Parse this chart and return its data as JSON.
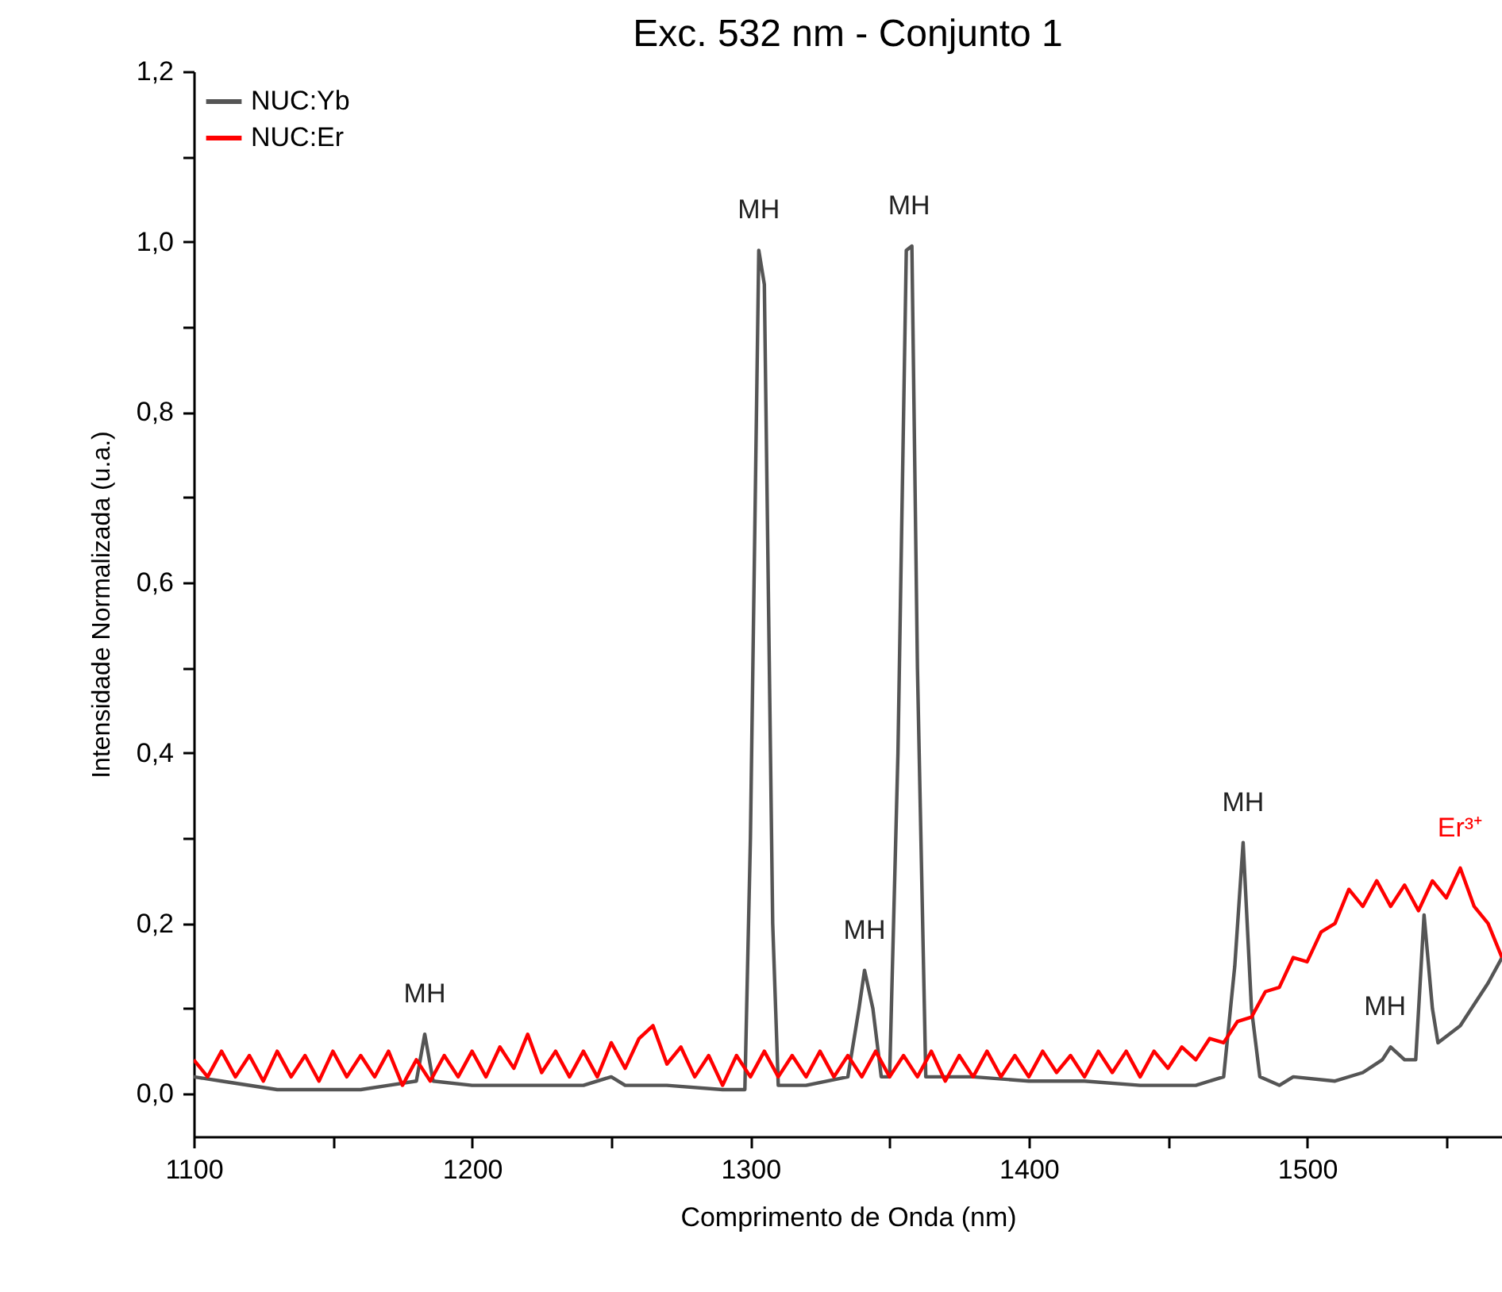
{
  "chart_data": {
    "type": "line",
    "title": "Exc. 532 nm - Conjunto 1",
    "xlabel": "Comprimento de Onda (nm)",
    "ylabel": "Intensidade Normalizada (u.a.)",
    "xlim": [
      1100,
      1570
    ],
    "ylim": [
      -0.05,
      1.2
    ],
    "xticks": [
      1100,
      {
        "value": 1150,
        "label": null
      },
      1200,
      {
        "value": 1250,
        "label": null
      },
      1300,
      {
        "value": 1350,
        "label": null
      },
      1400,
      {
        "value": 1450,
        "label": null
      },
      1500,
      {
        "value": 1550,
        "label": null
      }
    ],
    "yticks": [
      {
        "value": 0,
        "label": "0,0"
      },
      {
        "value": 0.1,
        "label": null
      },
      {
        "value": 0.2,
        "label": "0,2"
      },
      {
        "value": 0.3,
        "label": null
      },
      {
        "value": 0.4,
        "label": "0,4"
      },
      {
        "value": 0.5,
        "label": null
      },
      {
        "value": 0.6,
        "label": "0,6"
      },
      {
        "value": 0.7,
        "label": null
      },
      {
        "value": 0.8,
        "label": "0,8"
      },
      {
        "value": 0.9,
        "label": null
      },
      {
        "value": 1.0,
        "label": "1,0"
      },
      {
        "value": 1.1,
        "label": null
      },
      {
        "value": 1.2,
        "label": "1,2"
      }
    ],
    "grid": false,
    "legend": "top left",
    "line_style": "solid",
    "series": [
      {
        "name": "NUC:Yb",
        "color": "#555555",
        "x": [
          1100,
          1110,
          1130,
          1160,
          1170,
          1180,
          1183,
          1186,
          1200,
          1220,
          1240,
          1250,
          1255,
          1270,
          1290,
          1298,
          1300,
          1303,
          1305,
          1308,
          1310,
          1320,
          1335,
          1339,
          1341,
          1344,
          1347,
          1350,
          1353,
          1356,
          1358,
          1360,
          1363,
          1380,
          1400,
          1420,
          1440,
          1460,
          1470,
          1474,
          1477,
          1480,
          1483,
          1490,
          1495,
          1510,
          1520,
          1527,
          1530,
          1535,
          1539,
          1542,
          1545,
          1547,
          1555,
          1565,
          1570
        ],
        "values": [
          0.02,
          0.015,
          0.005,
          0.005,
          0.01,
          0.015,
          0.07,
          0.015,
          0.01,
          0.01,
          0.01,
          0.02,
          0.01,
          0.01,
          0.005,
          0.005,
          0.3,
          0.99,
          0.95,
          0.2,
          0.01,
          0.01,
          0.02,
          0.1,
          0.145,
          0.1,
          0.02,
          0.02,
          0.4,
          0.99,
          0.995,
          0.5,
          0.02,
          0.02,
          0.015,
          0.015,
          0.01,
          0.01,
          0.02,
          0.15,
          0.295,
          0.1,
          0.02,
          0.01,
          0.02,
          0.015,
          0.025,
          0.04,
          0.055,
          0.04,
          0.04,
          0.21,
          0.1,
          0.06,
          0.08,
          0.13,
          0.16
        ]
      },
      {
        "name": "NUC:Er",
        "color": "#ff0000",
        "x": [
          1100,
          1105,
          1110,
          1115,
          1120,
          1125,
          1130,
          1135,
          1140,
          1145,
          1150,
          1155,
          1160,
          1165,
          1170,
          1175,
          1180,
          1185,
          1190,
          1195,
          1200,
          1205,
          1210,
          1215,
          1220,
          1225,
          1230,
          1235,
          1240,
          1245,
          1250,
          1255,
          1260,
          1265,
          1270,
          1275,
          1280,
          1285,
          1290,
          1295,
          1300,
          1305,
          1310,
          1315,
          1320,
          1325,
          1330,
          1335,
          1340,
          1345,
          1350,
          1355,
          1360,
          1365,
          1370,
          1375,
          1380,
          1385,
          1390,
          1395,
          1400,
          1405,
          1410,
          1415,
          1420,
          1425,
          1430,
          1435,
          1440,
          1445,
          1450,
          1455,
          1460,
          1465,
          1470,
          1475,
          1480,
          1485,
          1490,
          1495,
          1500,
          1505,
          1510,
          1515,
          1520,
          1525,
          1530,
          1535,
          1540,
          1545,
          1550,
          1555,
          1560,
          1565,
          1570
        ],
        "values": [
          0.04,
          0.02,
          0.05,
          0.02,
          0.045,
          0.015,
          0.05,
          0.02,
          0.045,
          0.015,
          0.05,
          0.02,
          0.045,
          0.02,
          0.05,
          0.01,
          0.04,
          0.015,
          0.045,
          0.02,
          0.05,
          0.02,
          0.055,
          0.03,
          0.07,
          0.025,
          0.05,
          0.02,
          0.05,
          0.02,
          0.06,
          0.03,
          0.065,
          0.08,
          0.035,
          0.055,
          0.02,
          0.045,
          0.01,
          0.045,
          0.02,
          0.05,
          0.02,
          0.045,
          0.02,
          0.05,
          0.02,
          0.045,
          0.02,
          0.05,
          0.02,
          0.045,
          0.02,
          0.05,
          0.015,
          0.045,
          0.02,
          0.05,
          0.02,
          0.045,
          0.02,
          0.05,
          0.025,
          0.045,
          0.02,
          0.05,
          0.025,
          0.05,
          0.02,
          0.05,
          0.03,
          0.055,
          0.04,
          0.065,
          0.06,
          0.085,
          0.09,
          0.12,
          0.125,
          0.16,
          0.155,
          0.19,
          0.2,
          0.24,
          0.22,
          0.25,
          0.22,
          0.245,
          0.215,
          0.25,
          0.23,
          0.265,
          0.22,
          0.2,
          0.16
        ]
      }
    ],
    "annotations": [
      {
        "text": "MH",
        "x": 1183,
        "y": 0.07
      },
      {
        "text": "MH",
        "x": 1303,
        "y": 0.99
      },
      {
        "text": "MH",
        "x": 1341,
        "y": 0.145
      },
      {
        "text": "MH",
        "x": 1357,
        "y": 0.995
      },
      {
        "text": "MH",
        "x": 1477,
        "y": 0.295
      },
      {
        "text": "MH",
        "x": 1528,
        "y": 0.055
      },
      {
        "text": "Er³⁺",
        "x": 1555,
        "y": 0.265
      }
    ]
  }
}
